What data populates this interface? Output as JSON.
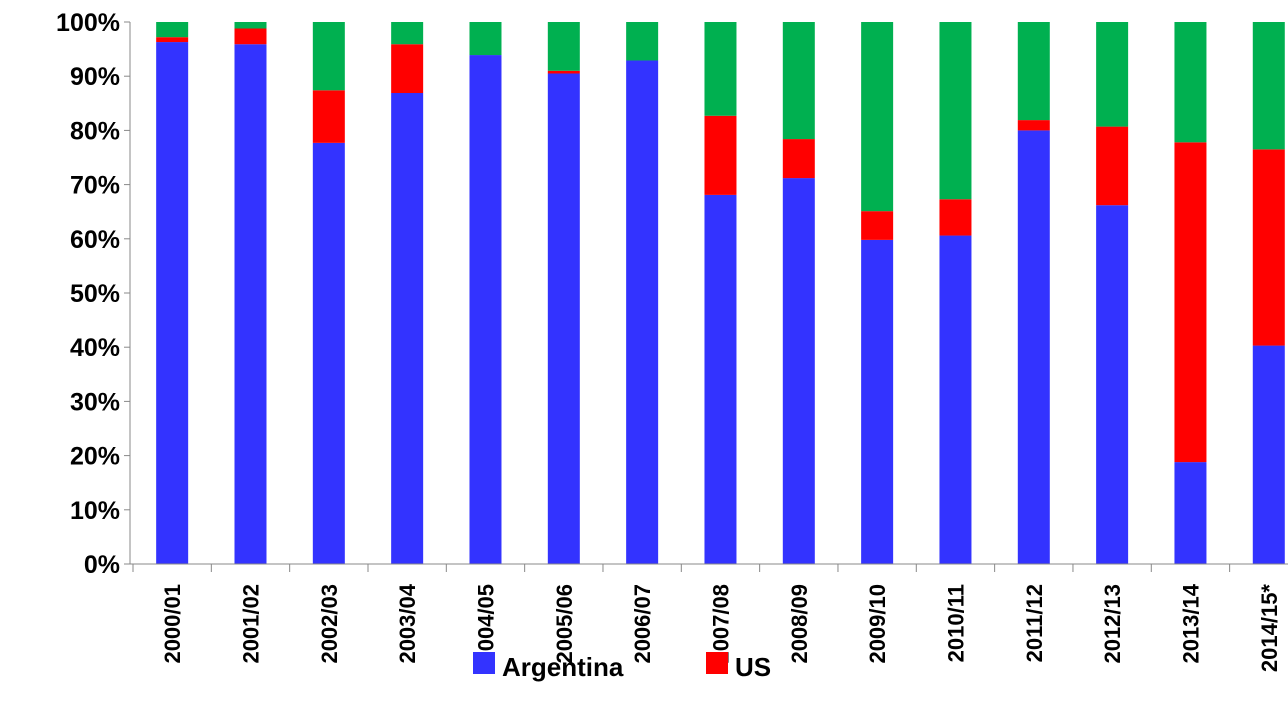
{
  "chart_data": {
    "type": "bar",
    "stacked": true,
    "percent": true,
    "title": "",
    "xlabel": "",
    "ylabel": "",
    "ylim": [
      0,
      100
    ],
    "grid": false,
    "legend_position": "bottom",
    "categories": [
      "2000/01",
      "2001/02",
      "2002/03",
      "2003/04",
      "2004/05",
      "2005/06",
      "2006/07",
      "2007/08",
      "2008/09",
      "2009/10",
      "2010/11",
      "2011/12",
      "2012/13",
      "2013/14",
      "2014/15*"
    ],
    "y_ticks": [
      "0%",
      "10%",
      "20%",
      "30%",
      "40%",
      "50%",
      "60%",
      "70%",
      "80%",
      "90%",
      "100%"
    ],
    "series": [
      {
        "name": "Argentina",
        "color": "#3333ff",
        "values": [
          96.3,
          95.9,
          77.7,
          86.9,
          93.9,
          90.5,
          92.9,
          68.1,
          71.2,
          59.8,
          60.6,
          80.0,
          66.2,
          18.8,
          40.3
        ]
      },
      {
        "name": "US",
        "color": "#ff0000",
        "values": [
          0.9,
          2.9,
          9.7,
          9.0,
          0.0,
          0.5,
          0.0,
          14.6,
          7.2,
          5.3,
          6.7,
          1.9,
          14.5,
          59.0,
          36.2
        ]
      },
      {
        "color": "#00b050",
        "values": [
          2.8,
          1.2,
          12.6,
          4.1,
          6.1,
          9.0,
          7.1,
          17.3,
          21.6,
          34.9,
          32.7,
          18.1,
          19.3,
          22.2,
          23.5
        ]
      }
    ]
  }
}
